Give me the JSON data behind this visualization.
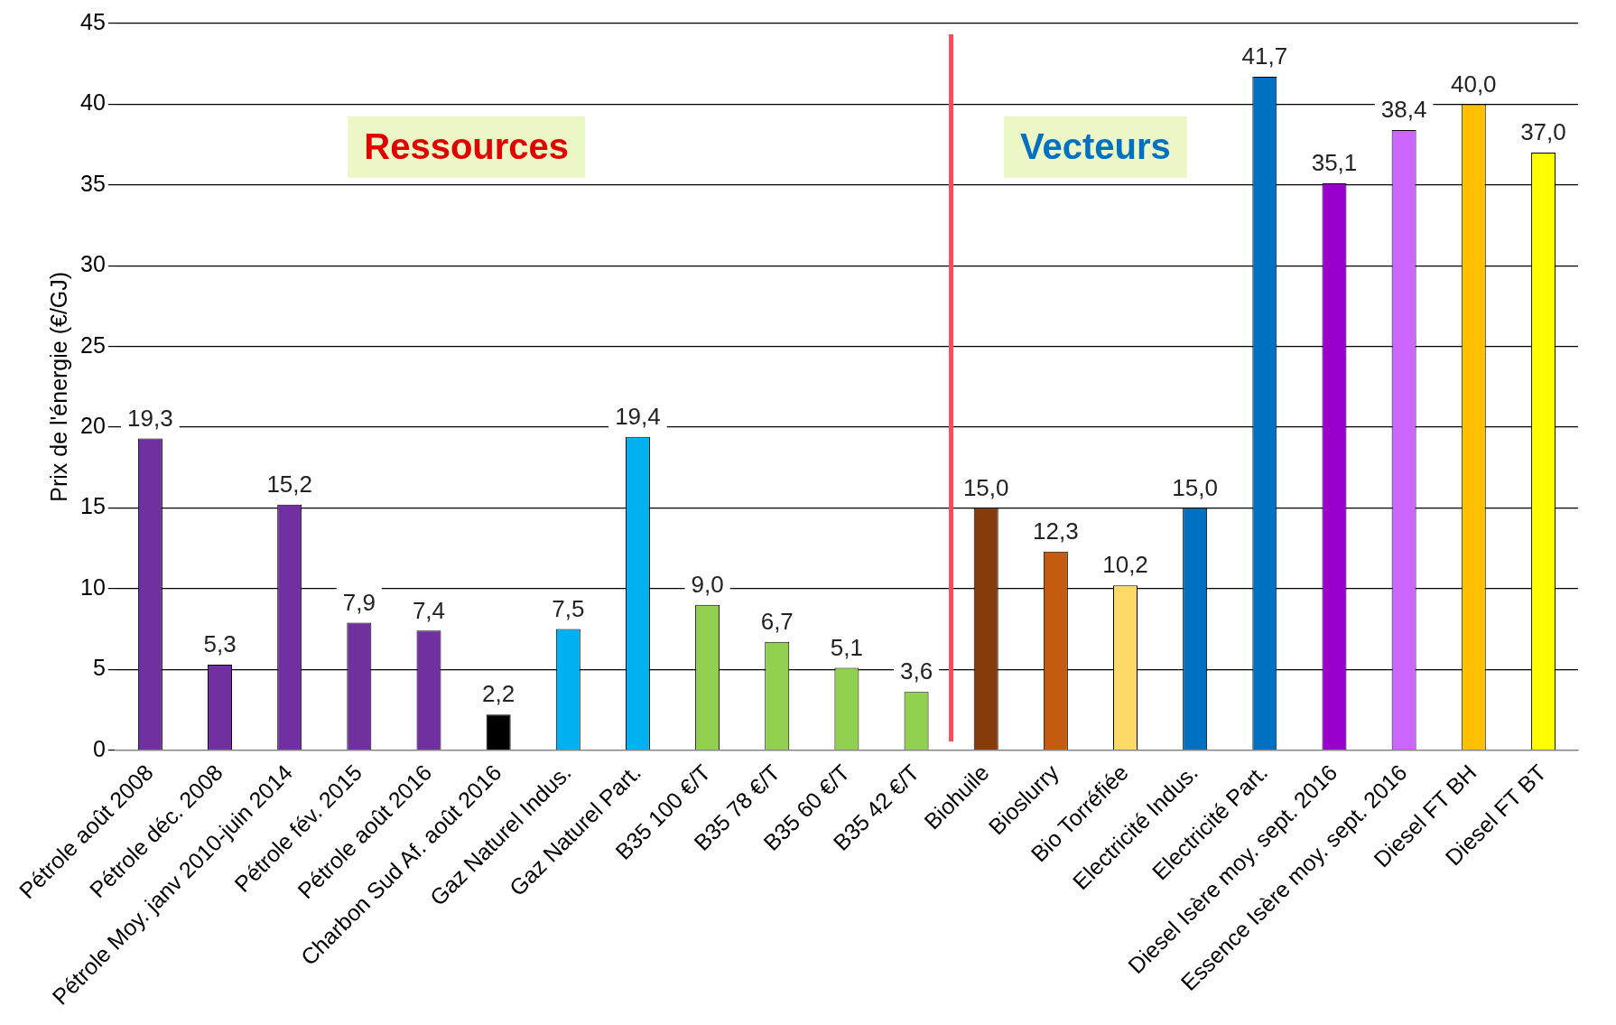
{
  "chart_data": {
    "type": "bar",
    "ylabel": "Prix de l'énergie (€/GJ)",
    "categories": [
      "Pétrole août 2008",
      "Pétrole déc. 2008",
      "Pétrole Moy. janv 2010-juin 2014",
      "Pétrole fév. 2015",
      "Pétrole août 2016",
      "Charbon Sud Af. août 2016",
      "Gaz Naturel Indus.",
      "Gaz Naturel Part.",
      "B35 100 €/T",
      "B35 78 €/T",
      "B35 60 €/T",
      "B35 42 €/T",
      "Biohuile",
      "Bioslurry",
      "Bio Torréfiée",
      "Electricité Indus.",
      "Electricité Part.",
      "Diesel Isère moy. sept. 2016",
      "Essence Isère moy. sept. 2016",
      "Diesel FT BH",
      "Diesel FT BT"
    ],
    "values": [
      19.3,
      5.3,
      15.2,
      7.9,
      7.4,
      2.2,
      7.5,
      19.4,
      9.0,
      6.7,
      5.1,
      3.6,
      15.0,
      12.3,
      10.2,
      15.0,
      41.7,
      35.1,
      38.4,
      40.0,
      37.0
    ],
    "value_labels": [
      "19,3",
      "5,3",
      "15,2",
      "7,9",
      "7,4",
      "2,2",
      "7,5",
      "19,4",
      "9,0",
      "6,7",
      "5,1",
      "3,6",
      "15,0",
      "12,3",
      "10,2",
      "15,0",
      "41,7",
      "35,1",
      "38,4",
      "40,0",
      "37,0"
    ],
    "colors": [
      "#7030a0",
      "#7030a0",
      "#7030a0",
      "#7030a0",
      "#7030a0",
      "#000000",
      "#00b0f0",
      "#00b0f0",
      "#92d050",
      "#92d050",
      "#92d050",
      "#92d050",
      "#843c0c",
      "#c55a11",
      "#ffd966",
      "#0070c0",
      "#0070c0",
      "#9900cc",
      "#cc66ff",
      "#ffc000",
      "#ffff00"
    ],
    "annotations": [
      "Ressources",
      "Vecteurs"
    ],
    "ylim": [
      0,
      45
    ],
    "yticks": [
      0,
      5,
      10,
      15,
      20,
      25,
      30,
      35,
      40,
      45
    ],
    "grid": "y",
    "legend": false
  }
}
